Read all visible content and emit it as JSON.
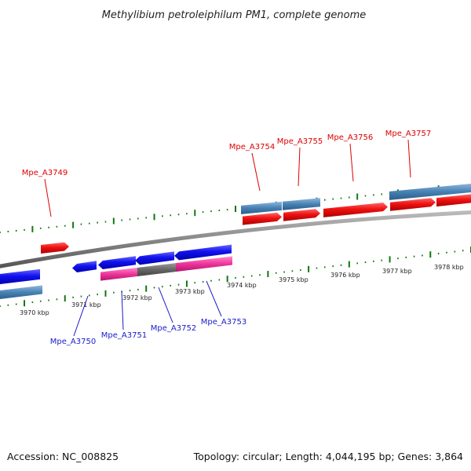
{
  "title": "Methylibium petroleiphilum PM1, complete genome",
  "footer": {
    "accession": "Accession: NC_008825",
    "summary": "Topology: circular; Length: 4,044,195 bp; Genes: 3,864"
  },
  "scale_labels": [
    "3970 kbp",
    "3971 kbp",
    "3972 kbp",
    "3973 kbp",
    "3974 kbp",
    "3975 kbp",
    "3976 kbp",
    "3977 kbp",
    "3978 kbp"
  ],
  "genes_forward": [
    "Mpe_A3749",
    "Mpe_A3754",
    "Mpe_A3755",
    "Mpe_A3756",
    "Mpe_A3757"
  ],
  "genes_reverse": [
    "Mpe_A3750",
    "Mpe_A3751",
    "Mpe_A3752",
    "Mpe_A3753"
  ],
  "colors": {
    "forward_label": "#dd0000",
    "reverse_label": "#1a1acc",
    "forward_cds": "#ee1111",
    "reverse_cds": "#1111ee",
    "gene_bar": "#4682b4",
    "rna_bar": "#ee3399",
    "dark_bar": "#666666",
    "tick": "#117711",
    "backbone": "#8a8a8a"
  }
}
